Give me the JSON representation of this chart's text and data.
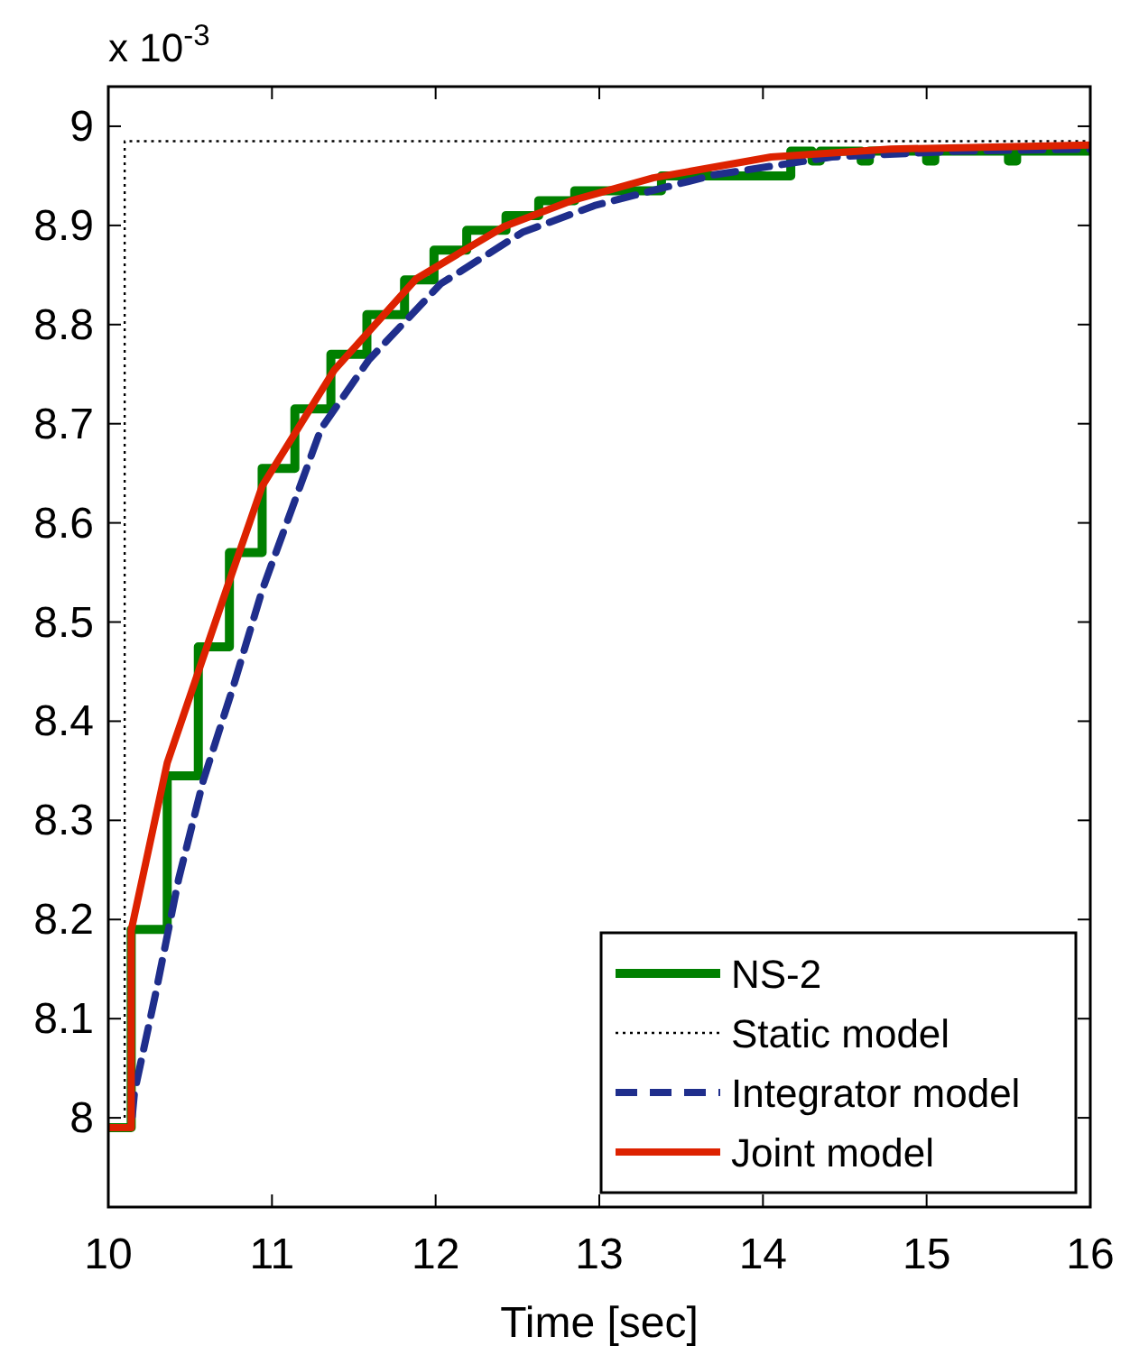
{
  "chart_data": {
    "type": "line",
    "xlabel": "Time [sec]",
    "annotations": [
      "x 10$^{-3}$"
    ],
    "xlim": [
      10,
      16
    ],
    "xticks": [
      10,
      11,
      12,
      13,
      14,
      15,
      16
    ],
    "ylim": [
      7.91,
      9.04
    ],
    "yticks": [
      8,
      8.1,
      8.2,
      8.3,
      8.4,
      8.5,
      8.6,
      8.7,
      8.8,
      8.9,
      9
    ],
    "grid": false,
    "legend": "bottom right",
    "series": [
      {
        "name": "NS-2",
        "type": "step",
        "color": "#008000",
        "line_style": "solid",
        "x": [
          10,
          10.14,
          10.36,
          10.55,
          10.74,
          10.94,
          11.14,
          11.36,
          11.58,
          11.81,
          11.99,
          12.19,
          12.43,
          12.63,
          12.85,
          13.38,
          14.17,
          14.3,
          14.35,
          14.6,
          14.65,
          15.0,
          15.05,
          15.5,
          15.55,
          16
        ],
        "values": [
          7.99,
          8.19,
          8.345,
          8.475,
          8.57,
          8.655,
          8.715,
          8.77,
          8.81,
          8.845,
          8.875,
          8.895,
          8.91,
          8.925,
          8.935,
          8.95,
          8.975,
          8.965,
          8.975,
          8.965,
          8.975,
          8.965,
          8.975,
          8.965,
          8.975,
          8.975
        ]
      },
      {
        "name": "Static model",
        "type": "line",
        "color": "#000000",
        "line_style": "dotted",
        "x": [
          10.1,
          10.1,
          16
        ],
        "values": [
          8.0,
          8.985,
          8.985
        ]
      },
      {
        "name": "Integrator model",
        "type": "line",
        "color": "#1f2e8c",
        "line_style": "dashed",
        "x": [
          10,
          10.14,
          10.16,
          10.29,
          10.43,
          10.58,
          10.76,
          10.94,
          11.3,
          11.59,
          12.03,
          12.53,
          12.97,
          13.7,
          14.42,
          15.2,
          16
        ],
        "values": [
          7.99,
          7.99,
          8.026,
          8.126,
          8.241,
          8.34,
          8.433,
          8.532,
          8.695,
          8.764,
          8.841,
          8.893,
          8.92,
          8.951,
          8.969,
          8.975,
          8.977
        ]
      },
      {
        "name": "Joint model",
        "type": "line",
        "color": "#dd2200",
        "line_style": "solid",
        "x": [
          10,
          10.14,
          10.14,
          10.36,
          10.72,
          10.94,
          11.38,
          11.88,
          12.42,
          12.83,
          13.33,
          14.05,
          14.78,
          16
        ],
        "values": [
          7.99,
          7.99,
          8.189,
          8.358,
          8.532,
          8.637,
          8.754,
          8.846,
          8.899,
          8.925,
          8.948,
          8.969,
          8.977,
          8.981
        ]
      }
    ]
  }
}
